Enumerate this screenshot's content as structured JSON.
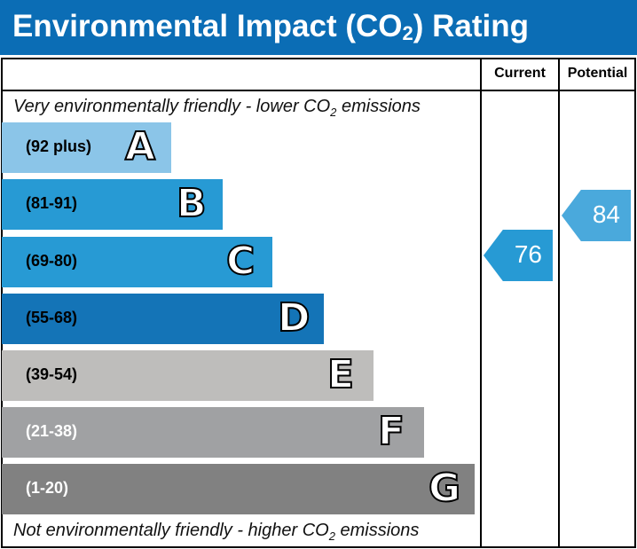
{
  "title": {
    "main": "Environmental Impact (CO",
    "sub": "2",
    "end": ") Rating"
  },
  "columns": {
    "current": "Current",
    "potential": "Potential"
  },
  "top_note": {
    "a": "Very environmentally friendly - lower CO",
    "sub": "2",
    "b": " emissions"
  },
  "bottom_note": {
    "a": "Not environmentally friendly - higher CO",
    "sub": "2",
    "b": " emissions"
  },
  "bands": [
    {
      "letter": "A",
      "range": "(92 plus)",
      "color": "#8bc5e8",
      "text_color": "#000"
    },
    {
      "letter": "B",
      "range": "(81-91)",
      "color": "#279ad4",
      "text_color": "#000"
    },
    {
      "letter": "C",
      "range": "(69-80)",
      "color": "#279ad4",
      "text_color": "#000"
    },
    {
      "letter": "D",
      "range": "(55-68)",
      "color": "#1474b7",
      "text_color": "#000"
    },
    {
      "letter": "E",
      "range": "(39-54)",
      "color": "#bebdbb",
      "text_color": "#000"
    },
    {
      "letter": "F",
      "range": "(21-38)",
      "color": "#a0a1a3",
      "text_color": "#fff"
    },
    {
      "letter": "G",
      "range": "(1-20)",
      "color": "#818181",
      "text_color": "#fff"
    }
  ],
  "current": {
    "value": "76",
    "band": "C",
    "color": "#279ad4"
  },
  "potential": {
    "value": "84",
    "band": "B",
    "color": "#4aa9dc"
  }
}
